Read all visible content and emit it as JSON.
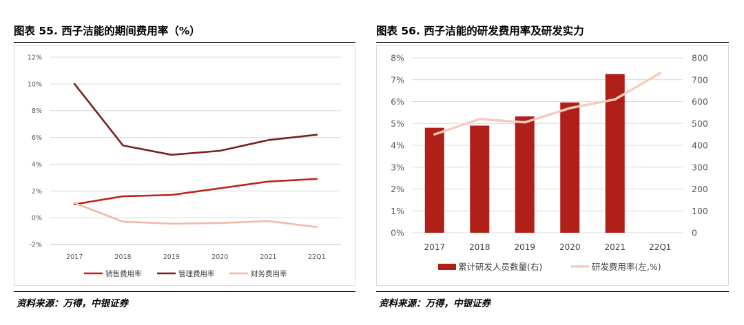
{
  "charts": [
    {
      "figure_title": "图表 55. 西子洁能的期间费用率（%）",
      "source": "资料来源：万得，中银证券",
      "series_colors": [
        "#c0231b",
        "#7b1f1c",
        "#f2b8a6"
      ]
    },
    {
      "figure_title": "图表 56. 西子洁能的研发费用率及研发实力",
      "source": "资料来源：万得，中银证券",
      "bar_color": "#b01f18",
      "line_color": "#f7cbbd"
    }
  ],
  "chart_data": [
    {
      "type": "line",
      "title": "图表 55. 西子洁能的期间费用率（%）",
      "categories": [
        "2017",
        "2018",
        "2019",
        "2020",
        "2021",
        "22Q1"
      ],
      "y_ticks": [
        "-2%",
        "0%",
        "2%",
        "4%",
        "6%",
        "8%",
        "10%",
        "12%"
      ],
      "ylim": [
        -2,
        12
      ],
      "series": [
        {
          "name": "销售费用率",
          "values": [
            1.0,
            1.6,
            1.7,
            2.2,
            2.7,
            2.9
          ]
        },
        {
          "name": "管理费用率",
          "values": [
            10.0,
            5.4,
            4.7,
            5.0,
            5.8,
            6.2
          ]
        },
        {
          "name": "财务费用率",
          "values": [
            1.1,
            -0.3,
            -0.45,
            -0.4,
            -0.25,
            -0.7
          ]
        }
      ],
      "legend_position": "bottom"
    },
    {
      "type": "bar+line",
      "title": "图表 56. 西子洁能的研发费用率及研发实力",
      "categories": [
        "2017",
        "2018",
        "2019",
        "2020",
        "2021",
        "22Q1"
      ],
      "y_left_ticks": [
        "0%",
        "1%",
        "2%",
        "3%",
        "4%",
        "5%",
        "6%",
        "7%",
        "8%"
      ],
      "y_right_ticks": [
        "0",
        "100",
        "200",
        "300",
        "400",
        "500",
        "600",
        "700",
        "800"
      ],
      "ylim_left": [
        0,
        8
      ],
      "ylim_right": [
        0,
        800
      ],
      "series": [
        {
          "name": "累计研发人员数量(右)",
          "kind": "bar",
          "axis": "right",
          "values": [
            480,
            490,
            532,
            596,
            726,
            null
          ]
        },
        {
          "name": "研发费用率(左,%)",
          "kind": "line",
          "axis": "left",
          "values": [
            4.5,
            5.2,
            5.05,
            5.7,
            6.1,
            7.3
          ]
        }
      ],
      "legend_position": "bottom"
    }
  ]
}
